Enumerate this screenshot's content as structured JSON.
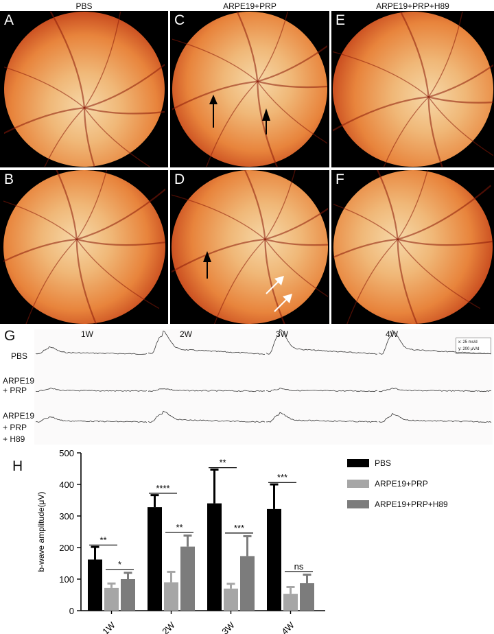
{
  "fundus": {
    "columns": [
      "PBS",
      "ARPE19+PRP",
      "ARPE19+PRP+H89"
    ],
    "panels": [
      {
        "letter": "A",
        "arrows": []
      },
      {
        "letter": "C",
        "arrows": [
          {
            "color": "black"
          },
          {
            "color": "black"
          }
        ]
      },
      {
        "letter": "E",
        "arrows": []
      },
      {
        "letter": "B",
        "arrows": []
      },
      {
        "letter": "D",
        "arrows": [
          {
            "color": "black"
          },
          {
            "color": "white"
          },
          {
            "color": "white"
          }
        ]
      },
      {
        "letter": "F",
        "arrows": []
      }
    ],
    "colors": {
      "center": "#f6d8a8",
      "mid": "#e8843c",
      "edge": "#b62a0e",
      "vessel": "#8a1a0a"
    }
  },
  "erg": {
    "label": "G",
    "weeks": [
      "1W",
      "2W",
      "3W",
      "4W"
    ],
    "rows": [
      "PBS",
      "ARPE19\n+ PRP",
      "ARPE19\n+ PRP\n+ H89"
    ],
    "scale": {
      "x": "x: 25 ms/d",
      "y": "y: 200 μV/d"
    }
  },
  "chart_data": {
    "label": "H",
    "type": "bar",
    "categories": [
      "1W",
      "2W",
      "3W",
      "4W"
    ],
    "ylabel": "b-wave  amplitude(μV)",
    "ylim": [
      0,
      500
    ],
    "yticks": [
      0,
      100,
      200,
      300,
      400,
      500
    ],
    "series": [
      {
        "name": "PBS",
        "color": "#000000",
        "values": [
          162,
          328,
          340,
          322
        ],
        "err": [
          40,
          38,
          107,
          78
        ]
      },
      {
        "name": "ARPE19+PRP",
        "color": "#a6a6a6",
        "values": [
          72,
          90,
          70,
          53
        ],
        "err": [
          14,
          33,
          15,
          22
        ]
      },
      {
        "name": "ARPE19+PRP+H89",
        "color": "#7c7c7c",
        "values": [
          100,
          203,
          173,
          87
        ],
        "err": [
          20,
          35,
          63,
          27
        ]
      }
    ],
    "significance": [
      {
        "category": 0,
        "pair": [
          0,
          1
        ],
        "label": "**"
      },
      {
        "category": 0,
        "pair": [
          1,
          2
        ],
        "label": "*"
      },
      {
        "category": 1,
        "pair": [
          0,
          1
        ],
        "label": "****"
      },
      {
        "category": 1,
        "pair": [
          1,
          2
        ],
        "label": "**"
      },
      {
        "category": 2,
        "pair": [
          0,
          1
        ],
        "label": "**"
      },
      {
        "category": 2,
        "pair": [
          1,
          2
        ],
        "label": "***"
      },
      {
        "category": 3,
        "pair": [
          0,
          1
        ],
        "label": "***"
      },
      {
        "category": 3,
        "pair": [
          1,
          2
        ],
        "label": "ns"
      }
    ]
  }
}
